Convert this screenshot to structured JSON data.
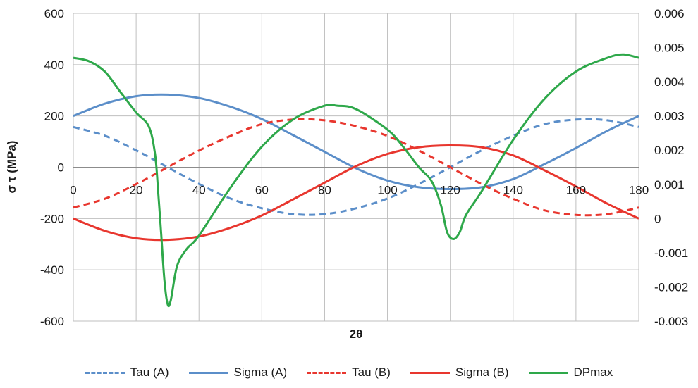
{
  "chart_data": {
    "type": "line",
    "xlabel": "2θ",
    "ylabel": "σ τ (MPa)",
    "y2label": "",
    "xlim": [
      0,
      180
    ],
    "ylim": [
      -600,
      600
    ],
    "y2lim": [
      -0.003,
      0.006
    ],
    "x_ticks": [
      "0",
      "20",
      "40",
      "60",
      "80",
      "100",
      "120",
      "140",
      "160",
      "180"
    ],
    "y_ticks": [
      "600",
      "400",
      "200",
      "0",
      "-200",
      "-400",
      "-600"
    ],
    "y2_ticks": [
      "0.006",
      "0.005",
      "0.004",
      "0.003",
      "0.002",
      "0.001",
      "0",
      "-0.001",
      "-0.002",
      "-0.003"
    ],
    "grid": true,
    "legend_position": "bottom",
    "series": [
      {
        "name": "Tau (A)",
        "color": "#5b8ec9",
        "dash": "dashed",
        "axis": "left",
        "x": [
          0,
          10,
          20,
          30,
          40,
          50,
          60,
          70,
          80,
          90,
          100,
          110,
          120,
          130,
          140,
          150,
          160,
          170,
          180
        ],
        "values": [
          157,
          123,
          66,
          0,
          -65,
          -122,
          -160,
          -183,
          -183,
          -160,
          -122,
          -65,
          0,
          66,
          123,
          168,
          186,
          183,
          157
        ]
      },
      {
        "name": "Sigma (A)",
        "color": "#5b8ec9",
        "dash": "solid",
        "axis": "left",
        "x": [
          0,
          10,
          20,
          30,
          40,
          50,
          60,
          70,
          80,
          90,
          100,
          110,
          120,
          130,
          140,
          150,
          160,
          170,
          180
        ],
        "values": [
          200,
          248,
          277,
          283,
          270,
          236,
          188,
          125,
          60,
          -4,
          -52,
          -78,
          -85,
          -78,
          -46,
          12,
          75,
          142,
          200
        ]
      },
      {
        "name": "Tau (B)",
        "color": "#e8362e",
        "dash": "dashed",
        "axis": "left",
        "x": [
          0,
          10,
          20,
          30,
          40,
          50,
          60,
          70,
          80,
          90,
          100,
          110,
          120,
          130,
          140,
          150,
          160,
          170,
          180
        ],
        "values": [
          -157,
          -123,
          -66,
          0,
          65,
          122,
          168,
          186,
          183,
          160,
          122,
          65,
          0,
          -66,
          -123,
          -168,
          -186,
          -183,
          -157
        ]
      },
      {
        "name": "Sigma (B)",
        "color": "#e8362e",
        "dash": "solid",
        "axis": "left",
        "x": [
          0,
          10,
          20,
          30,
          40,
          50,
          60,
          70,
          80,
          90,
          100,
          110,
          120,
          130,
          140,
          150,
          160,
          170,
          180
        ],
        "values": [
          -200,
          -248,
          -277,
          -283,
          -270,
          -236,
          -188,
          -125,
          -60,
          4,
          52,
          78,
          85,
          78,
          46,
          -12,
          -75,
          -142,
          -200
        ]
      },
      {
        "name": "DPmax",
        "color": "#2ea84a",
        "dash": "solid",
        "axis": "right",
        "x": [
          0,
          5,
          10,
          15,
          20,
          24,
          26,
          27,
          28,
          29,
          30,
          31,
          33,
          36,
          40,
          50,
          60,
          70,
          80,
          84,
          90,
          100,
          105,
          110,
          114,
          117,
          119,
          121,
          123,
          125,
          130,
          140,
          150,
          160,
          170,
          175,
          180
        ],
        "values": [
          0.0047,
          0.0046,
          0.0043,
          0.0037,
          0.0031,
          0.0027,
          0.0019,
          0.0008,
          -0.0005,
          -0.0018,
          -0.0025,
          -0.0024,
          -0.0014,
          -0.0009,
          -0.0005,
          0.0009,
          0.0021,
          0.0029,
          0.0033,
          0.0033,
          0.0032,
          0.0026,
          0.0021,
          0.0015,
          0.0011,
          0.0004,
          -0.0004,
          -0.0006,
          -0.0004,
          0.0001,
          0.0008,
          0.0023,
          0.0035,
          0.0043,
          0.0047,
          0.0048,
          0.0047
        ]
      }
    ]
  }
}
